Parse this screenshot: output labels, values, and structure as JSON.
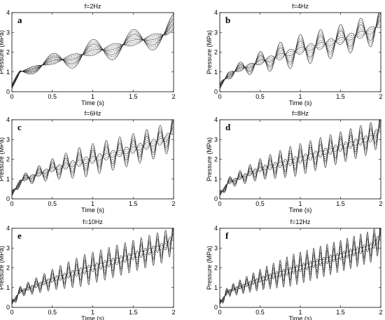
{
  "chart_data": [
    {
      "type": "line",
      "panel_letter": "a",
      "title": "f=2Hz",
      "frequency_hz": 2,
      "xlabel": "Time (s)",
      "ylabel": "Pressure (MPa)",
      "xlim": [
        0,
        2
      ],
      "ylim": [
        0,
        4
      ],
      "xticks": [
        "0",
        "0.5",
        "1",
        "1.5",
        "2"
      ],
      "yticks": [
        "0",
        "1",
        "2",
        "3",
        "4"
      ],
      "grid": false,
      "series_count": 10,
      "mean_pressure": {
        "t": [
          0,
          0.1,
          0.5,
          1.0,
          1.5,
          1.9,
          2.0
        ],
        "p": [
          0.2,
          1.0,
          1.5,
          2.0,
          2.5,
          2.9,
          3.3
        ]
      },
      "max_peak_to_peak": 1.6
    },
    {
      "type": "line",
      "panel_letter": "b",
      "title": "f=4Hz",
      "frequency_hz": 4,
      "xlabel": "Time (s)",
      "ylabel": "Pressure (MPa)",
      "xlim": [
        0,
        2
      ],
      "ylim": [
        0,
        4
      ],
      "xticks": [
        "0",
        "0.5",
        "1",
        "1.5",
        "2"
      ],
      "yticks": [
        "0",
        "1",
        "2",
        "3",
        "4"
      ],
      "grid": false,
      "series_count": 10,
      "mean_pressure": {
        "t": [
          0,
          0.1,
          0.5,
          1.0,
          1.5,
          1.9,
          2.0
        ],
        "p": [
          0.2,
          0.9,
          1.5,
          2.1,
          2.6,
          3.1,
          3.5
        ]
      },
      "max_peak_to_peak": 2.0
    },
    {
      "type": "line",
      "panel_letter": "c",
      "title": "f=6Hz",
      "frequency_hz": 6,
      "xlabel": "Time (s)",
      "ylabel": "Pressure (MPa)",
      "xlim": [
        0,
        2
      ],
      "ylim": [
        0,
        4
      ],
      "xticks": [
        "0",
        "0.5",
        "1",
        "1.5",
        "2"
      ],
      "yticks": [
        "0",
        "1",
        "2",
        "3",
        "4"
      ],
      "grid": false,
      "series_count": 10,
      "mean_pressure": {
        "t": [
          0,
          0.1,
          0.5,
          1.0,
          1.5,
          1.9,
          2.0
        ],
        "p": [
          0.2,
          0.9,
          1.5,
          2.0,
          2.5,
          3.0,
          3.5
        ]
      },
      "max_peak_to_peak": 2.0
    },
    {
      "type": "line",
      "panel_letter": "d",
      "title": "f=8Hz",
      "frequency_hz": 8,
      "xlabel": "Time (s)",
      "ylabel": "Pressure (MPa)",
      "xlim": [
        0,
        2
      ],
      "ylim": [
        0,
        4
      ],
      "xticks": [
        "0",
        "0.5",
        "1",
        "1.5",
        "2"
      ],
      "yticks": [
        "0",
        "1",
        "2",
        "3",
        "4"
      ],
      "grid": false,
      "series_count": 10,
      "mean_pressure": {
        "t": [
          0,
          0.1,
          0.5,
          1.0,
          1.5,
          1.9,
          2.0
        ],
        "p": [
          0.2,
          0.8,
          1.5,
          2.0,
          2.6,
          3.1,
          3.6
        ]
      },
      "max_peak_to_peak": 2.0
    },
    {
      "type": "line",
      "panel_letter": "e",
      "title": "f=10Hz",
      "frequency_hz": 10,
      "xlabel": "Time (s)",
      "ylabel": "Pressure (MPa)",
      "xlim": [
        0,
        2
      ],
      "ylim": [
        0,
        4
      ],
      "xticks": [
        "0",
        "0.5",
        "1",
        "1.5",
        "2"
      ],
      "yticks": [
        "0",
        "1",
        "2",
        "3",
        "4"
      ],
      "grid": false,
      "series_count": 10,
      "mean_pressure": {
        "t": [
          0,
          0.1,
          0.5,
          1.0,
          1.5,
          1.9,
          2.0
        ],
        "p": [
          0.2,
          0.8,
          1.4,
          2.0,
          2.6,
          3.1,
          3.6
        ]
      },
      "max_peak_to_peak": 2.0
    },
    {
      "type": "line",
      "panel_letter": "f",
      "title": "f=12Hz",
      "frequency_hz": 12,
      "xlabel": "Time (s)",
      "ylabel": "Pressure (MPa)",
      "xlim": [
        0,
        2
      ],
      "ylim": [
        0,
        4
      ],
      "xticks": [
        "0",
        "0.5",
        "1",
        "1.5",
        "2"
      ],
      "yticks": [
        "0",
        "1",
        "2",
        "3",
        "4"
      ],
      "grid": false,
      "series_count": 10,
      "mean_pressure": {
        "t": [
          0,
          0.1,
          0.5,
          1.0,
          1.5,
          1.9,
          2.0
        ],
        "p": [
          0.2,
          0.8,
          1.4,
          2.0,
          2.6,
          3.1,
          3.6
        ]
      },
      "max_peak_to_peak": 2.0
    }
  ]
}
